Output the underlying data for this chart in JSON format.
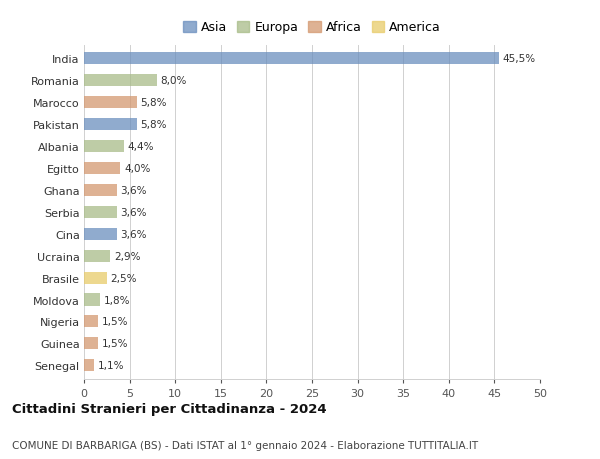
{
  "countries": [
    "India",
    "Romania",
    "Marocco",
    "Pakistan",
    "Albania",
    "Egitto",
    "Ghana",
    "Serbia",
    "Cina",
    "Ucraina",
    "Brasile",
    "Moldova",
    "Nigeria",
    "Guinea",
    "Senegal"
  ],
  "values": [
    45.5,
    8.0,
    5.8,
    5.8,
    4.4,
    4.0,
    3.6,
    3.6,
    3.6,
    2.9,
    2.5,
    1.8,
    1.5,
    1.5,
    1.1
  ],
  "labels": [
    "45,5%",
    "8,0%",
    "5,8%",
    "5,8%",
    "4,4%",
    "4,0%",
    "3,6%",
    "3,6%",
    "3,6%",
    "2,9%",
    "2,5%",
    "1,8%",
    "1,5%",
    "1,5%",
    "1,1%"
  ],
  "continents": [
    "Asia",
    "Europa",
    "Africa",
    "Asia",
    "Europa",
    "Africa",
    "Africa",
    "Europa",
    "Asia",
    "Europa",
    "America",
    "Europa",
    "Africa",
    "Africa",
    "Africa"
  ],
  "colors": {
    "Asia": "#6b8fbe",
    "Europa": "#a8bc88",
    "Africa": "#d49870",
    "America": "#e8cb6a"
  },
  "legend_order": [
    "Asia",
    "Europa",
    "Africa",
    "America"
  ],
  "title": "Cittadini Stranieri per Cittadinanza - 2024",
  "subtitle": "COMUNE DI BARBARIGA (BS) - Dati ISTAT al 1° gennaio 2024 - Elaborazione TUTTITALIA.IT",
  "xlim": [
    0,
    50
  ],
  "xticks": [
    0,
    5,
    10,
    15,
    20,
    25,
    30,
    35,
    40,
    45,
    50
  ],
  "background_color": "#ffffff",
  "grid_color": "#d0d0d0",
  "bar_height": 0.55,
  "bar_alpha": 0.75,
  "label_fontsize": 7.5,
  "ytick_fontsize": 8.0,
  "xtick_fontsize": 8.0,
  "legend_fontsize": 9.0,
  "title_fontsize": 9.5,
  "subtitle_fontsize": 7.5
}
